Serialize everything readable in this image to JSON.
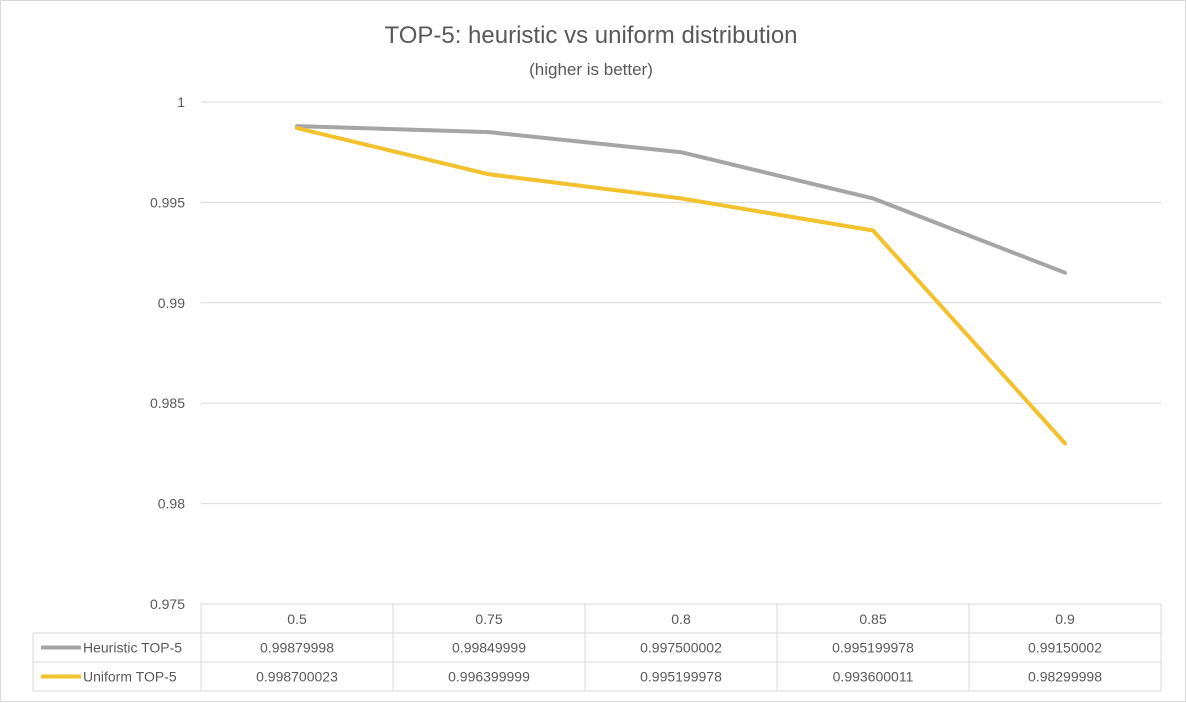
{
  "chart_data": {
    "type": "line",
    "title": "TOP-5: heuristic vs uniform distribution",
    "subtitle": "(higher is better)",
    "categories": [
      "0.5",
      "0.75",
      "0.8",
      "0.85",
      "0.9"
    ],
    "ylim": [
      0.975,
      1
    ],
    "yticks": [
      "1",
      "0.995",
      "0.99",
      "0.985",
      "0.98",
      "0.975"
    ],
    "grid": true,
    "legend": "data-table",
    "series": [
      {
        "name": "Heuristic TOP-5",
        "color": "#a5a5a5",
        "values": [
          0.99879998,
          0.99849999,
          0.997500002,
          0.995199978,
          0.99150002
        ],
        "labels": [
          "0.99879998",
          "0.99849999",
          "0.997500002",
          "0.995199978",
          "0.99150002"
        ]
      },
      {
        "name": "Uniform TOP-5",
        "color": "#f2c12e",
        "values": [
          0.998700023,
          0.996399999,
          0.995199978,
          0.993600011,
          0.98299998
        ],
        "labels": [
          "0.998700023",
          "0.996399999",
          "0.995199978",
          "0.993600011",
          "0.98299998"
        ]
      }
    ]
  }
}
